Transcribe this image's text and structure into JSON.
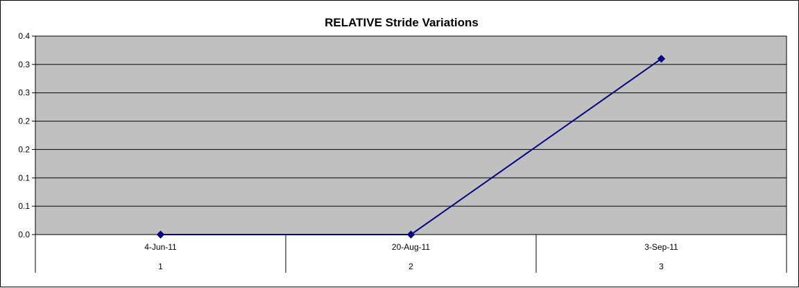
{
  "chart_data": {
    "type": "line",
    "title": "RELATIVE Stride Variations",
    "xlabel": "",
    "ylabel": "",
    "y_tick_labels": [
      "0.0",
      "0.1",
      "0.1",
      "0.2",
      "0.2",
      "0.3",
      "0.3",
      "0.4"
    ],
    "ylim": [
      0,
      0.35
    ],
    "categories": [
      {
        "date": "4-Jun-11",
        "index": "1"
      },
      {
        "date": "20-Aug-11",
        "index": "2"
      },
      {
        "date": "3-Sep-11",
        "index": "3"
      }
    ],
    "series": [
      {
        "values": [
          0.0,
          0.0,
          0.31
        ],
        "marker": "diamond"
      }
    ],
    "grid": true,
    "legend": "none",
    "colors": {
      "plot_background": "#c0c0c0",
      "line": "#000080",
      "gridline": "#000000"
    }
  }
}
